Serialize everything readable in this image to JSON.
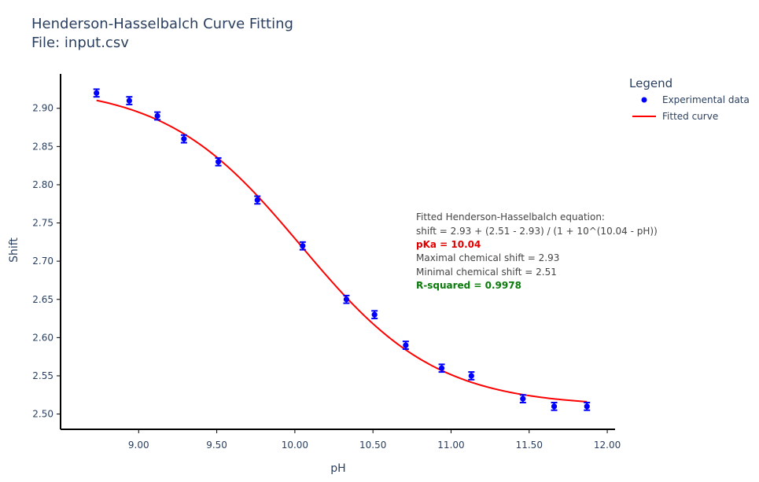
{
  "chart_data": {
    "type": "scatter",
    "title": "Henderson-Hasselbalch Curve Fitting",
    "subtitle": "File: input.csv",
    "xlabel": "pH",
    "ylabel": "Shift",
    "xlim": [
      8.5,
      12.05
    ],
    "ylim": [
      2.48,
      2.945
    ],
    "x_ticks": [
      "9.00",
      "9.50",
      "10.00",
      "10.50",
      "11.00",
      "11.50",
      "12.00"
    ],
    "y_ticks": [
      "2.50",
      "2.55",
      "2.60",
      "2.65",
      "2.70",
      "2.75",
      "2.80",
      "2.85",
      "2.90"
    ],
    "legend": {
      "title": "Legend",
      "position": "top-right",
      "entries": [
        "Experimental data",
        "Fitted curve"
      ]
    },
    "series": [
      {
        "name": "Experimental data",
        "mode": "markers",
        "color": "#0000ff",
        "error_y": 0.005,
        "x": [
          8.73,
          8.94,
          9.12,
          9.29,
          9.51,
          9.76,
          10.05,
          10.33,
          10.51,
          10.71,
          10.94,
          11.13,
          11.46,
          11.66,
          11.87
        ],
        "y": [
          2.92,
          2.91,
          2.89,
          2.86,
          2.83,
          2.78,
          2.72,
          2.65,
          2.63,
          2.59,
          2.56,
          2.55,
          2.52,
          2.51,
          2.51
        ]
      },
      {
        "name": "Fitted curve",
        "mode": "lines",
        "color": "#ff0000",
        "fit": {
          "max": 2.93,
          "min": 2.51,
          "pka": 10.04
        },
        "x_range": [
          8.73,
          11.87
        ]
      }
    ],
    "annotation": {
      "line1": "Fitted Henderson-Hasselbalch equation:",
      "line2": "shift = 2.93 + (2.51 - 2.93) / (1 + 10^(10.04 - pH))",
      "line3": "pKa = 10.04",
      "line4": "Maximal chemical shift = 2.93",
      "line5": "Minimal chemical shift = 2.51",
      "line6": "R-squared = 0.9978"
    }
  }
}
